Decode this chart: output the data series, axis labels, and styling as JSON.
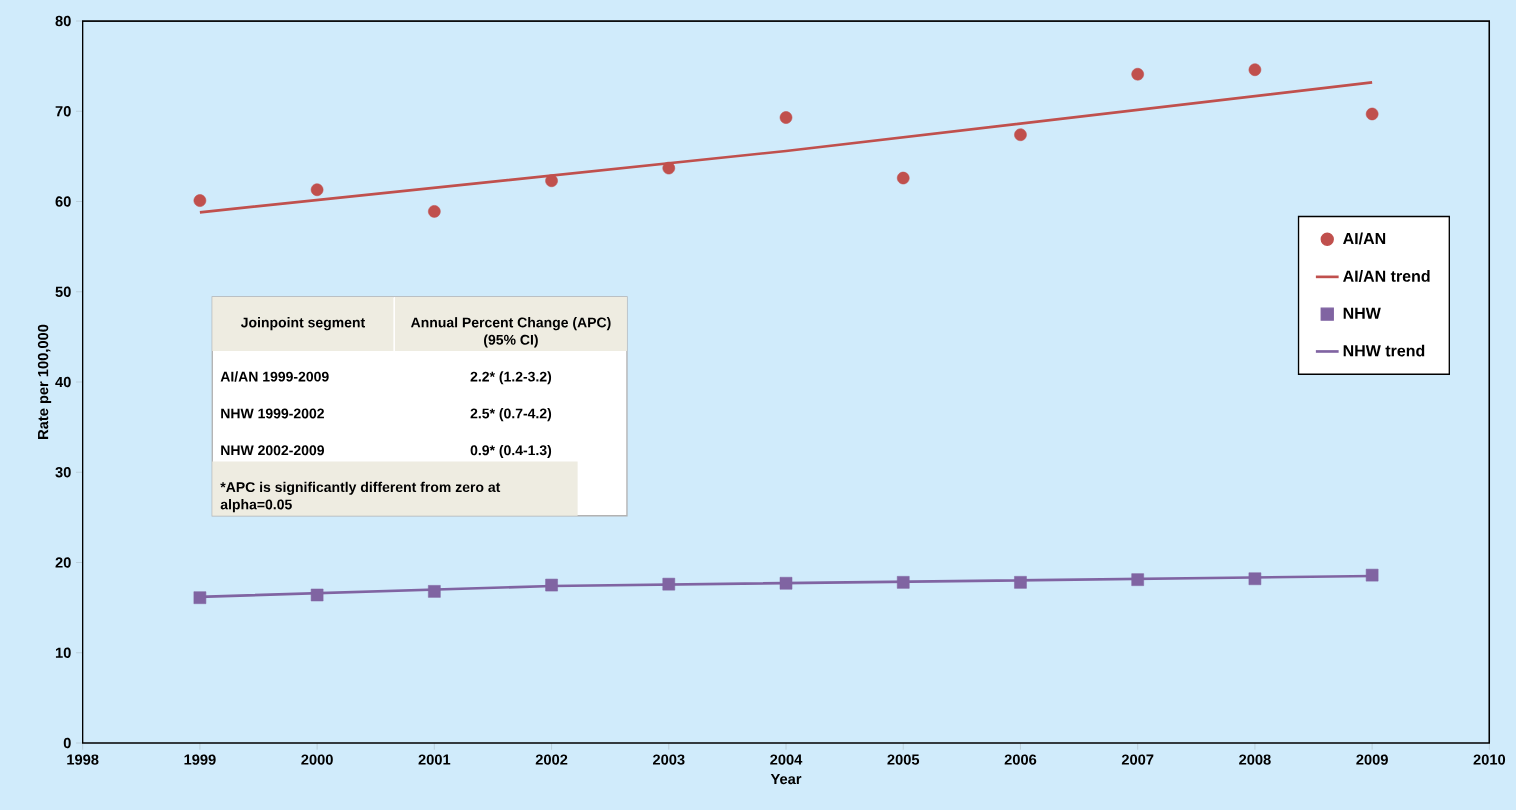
{
  "chart_data": {
    "type": "scatter",
    "xlabel": "Year",
    "ylabel": "Rate per 100,000",
    "xlim": [
      1998,
      2010
    ],
    "xticks": [
      1998,
      1999,
      2000,
      2001,
      2002,
      2003,
      2004,
      2005,
      2006,
      2007,
      2008,
      2009,
      2010
    ],
    "ylim": [
      0,
      80
    ],
    "yticks": [
      0,
      10,
      20,
      30,
      40,
      50,
      60,
      70,
      80
    ],
    "grid": false,
    "legend": "right",
    "series": [
      {
        "name": "AI/AN",
        "marker": "circle",
        "color": "#c0504d",
        "x": [
          1999,
          2000,
          2001,
          2002,
          2003,
          2004,
          2005,
          2006,
          2007,
          2008,
          2009
        ],
        "values": [
          60.1,
          61.3,
          58.9,
          62.3,
          63.7,
          69.3,
          62.6,
          67.4,
          74.1,
          74.6,
          69.7
        ]
      },
      {
        "name": "AI/AN trend",
        "type": "line",
        "marker": "none",
        "color": "#c0504d",
        "x": [
          1999,
          2004,
          2009
        ],
        "values": [
          58.8,
          65.6,
          73.2
        ]
      },
      {
        "name": "NHW",
        "marker": "square",
        "color": "#8064a2",
        "x": [
          1999,
          2000,
          2001,
          2002,
          2003,
          2004,
          2005,
          2006,
          2007,
          2008,
          2009
        ],
        "values": [
          16.1,
          16.4,
          16.8,
          17.5,
          17.6,
          17.7,
          17.8,
          17.8,
          18.1,
          18.2,
          18.6
        ]
      },
      {
        "name": "NHW trend",
        "type": "line",
        "marker": "none",
        "color": "#8064a2",
        "x": [
          1999,
          2002,
          2009
        ],
        "values": [
          16.2,
          17.4,
          18.5
        ]
      }
    ],
    "annotations": [
      "Joinpoint segment",
      "Annual Percent Change (APC) (95% CI)",
      "AI/AN  1999-2009",
      "2.2* (1.2-3.2)",
      "NHW 1999-2002",
      "2.5* (0.7-4.2)",
      "NHW 2002-2009",
      "0.9* (0.4-1.3)",
      "*APC is significantly different from zero at alpha=0.05"
    ]
  }
}
